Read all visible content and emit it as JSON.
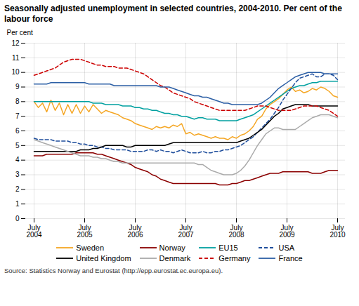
{
  "chart_data": {
    "type": "line",
    "title": "Seasonally adjusted unemployment in selected countries, 2004-2010. Per cent of the labour force",
    "ylabel": "Per cent",
    "caption": "Source: Statistics Norway and Eurostat (http://epp.eurostat.ec.europa.eu).",
    "categories": [
      "July\n2004",
      null,
      null,
      null,
      null,
      null,
      null,
      null,
      null,
      null,
      null,
      null,
      "July\n2005",
      null,
      null,
      null,
      null,
      null,
      null,
      null,
      null,
      null,
      null,
      null,
      "July\n2006",
      null,
      null,
      null,
      null,
      null,
      null,
      null,
      null,
      null,
      null,
      null,
      "July\n2007",
      null,
      null,
      null,
      null,
      null,
      null,
      null,
      null,
      null,
      null,
      null,
      "July\n2008",
      null,
      null,
      null,
      null,
      null,
      null,
      null,
      null,
      null,
      null,
      null,
      "July\n2009",
      null,
      null,
      null,
      null,
      null,
      null,
      null,
      null,
      null,
      null,
      null,
      "July\n2010"
    ],
    "ylim": [
      0,
      12
    ],
    "yticks": [
      0,
      1,
      2,
      3,
      4,
      5,
      6,
      7,
      8,
      9,
      10,
      11,
      12
    ],
    "grid": true,
    "legend": "bottom",
    "series": [
      {
        "name": "Sweden",
        "color": "#f5a623",
        "line_style": "solid",
        "values": [
          8.0,
          7.6,
          7.9,
          7.3,
          8.1,
          7.4,
          7.9,
          7.1,
          7.8,
          7.2,
          7.8,
          7.2,
          7.7,
          7.3,
          7.8,
          7.5,
          7.2,
          7.4,
          7.3,
          7.2,
          7.1,
          6.9,
          6.8,
          6.7,
          6.5,
          6.4,
          6.3,
          6.2,
          6.1,
          6.3,
          6.2,
          6.3,
          6.2,
          6.4,
          6.3,
          6.5,
          5.8,
          5.9,
          5.7,
          5.8,
          5.7,
          5.6,
          5.5,
          5.6,
          5.5,
          5.5,
          5.4,
          5.6,
          5.5,
          5.7,
          5.8,
          6.0,
          6.3,
          6.8,
          7.0,
          7.5,
          7.8,
          8.0,
          8.2,
          8.5,
          8.8,
          9.0,
          8.7,
          8.8,
          8.6,
          8.7,
          8.9,
          8.8,
          9.0,
          8.9,
          8.7,
          8.4,
          8.3
        ]
      },
      {
        "name": "Norway",
        "color": "#8b0000",
        "line_style": "solid",
        "values": [
          4.3,
          4.3,
          4.3,
          4.4,
          4.4,
          4.4,
          4.4,
          4.4,
          4.4,
          4.4,
          4.5,
          4.5,
          4.5,
          4.5,
          4.5,
          4.4,
          4.4,
          4.3,
          4.2,
          4.1,
          4.0,
          3.9,
          3.8,
          3.7,
          3.5,
          3.4,
          3.3,
          3.2,
          3.0,
          2.9,
          2.7,
          2.6,
          2.5,
          2.4,
          2.4,
          2.4,
          2.4,
          2.4,
          2.4,
          2.4,
          2.4,
          2.4,
          2.4,
          2.4,
          2.3,
          2.3,
          2.3,
          2.4,
          2.4,
          2.5,
          2.6,
          2.6,
          2.7,
          2.8,
          2.9,
          3.0,
          3.1,
          3.1,
          3.1,
          3.2,
          3.2,
          3.2,
          3.2,
          3.2,
          3.2,
          3.2,
          3.1,
          3.1,
          3.1,
          3.2,
          3.3,
          3.3,
          3.3
        ]
      },
      {
        "name": "EU15",
        "color": "#00a0a0",
        "line_style": "solid",
        "values": [
          8.0,
          8.0,
          8.0,
          8.0,
          8.0,
          8.0,
          8.0,
          8.0,
          8.0,
          8.0,
          8.0,
          8.0,
          8.0,
          8.0,
          7.9,
          7.9,
          7.9,
          7.8,
          7.8,
          7.8,
          7.8,
          7.7,
          7.7,
          7.7,
          7.6,
          7.6,
          7.5,
          7.5,
          7.4,
          7.4,
          7.3,
          7.2,
          7.2,
          7.1,
          7.1,
          7.0,
          7.0,
          6.9,
          6.8,
          6.9,
          6.9,
          6.8,
          6.8,
          6.8,
          6.7,
          6.7,
          6.7,
          6.7,
          6.7,
          6.8,
          6.9,
          7.0,
          7.1,
          7.3,
          7.5,
          7.7,
          7.9,
          8.1,
          8.3,
          8.5,
          8.7,
          8.9,
          9.0,
          9.1,
          9.1,
          9.2,
          9.3,
          9.3,
          9.4,
          9.4,
          9.4,
          9.4,
          9.4
        ]
      },
      {
        "name": "USA",
        "color": "#1f4e9c",
        "line_style": "dashed",
        "values": [
          5.5,
          5.4,
          5.4,
          5.4,
          5.4,
          5.3,
          5.3,
          5.3,
          5.3,
          5.2,
          5.2,
          5.1,
          5.1,
          5.0,
          5.0,
          4.9,
          4.9,
          4.8,
          4.8,
          4.7,
          4.7,
          4.7,
          4.7,
          4.6,
          4.6,
          4.6,
          4.6,
          4.7,
          4.7,
          4.6,
          4.7,
          4.6,
          4.6,
          4.5,
          4.6,
          4.7,
          4.6,
          4.5,
          4.5,
          4.5,
          4.6,
          4.5,
          4.5,
          4.6,
          4.6,
          4.7,
          4.7,
          4.8,
          4.9,
          5.0,
          5.2,
          5.4,
          5.6,
          5.9,
          6.2,
          6.5,
          6.8,
          7.2,
          7.6,
          8.1,
          8.5,
          8.9,
          9.3,
          9.6,
          9.7,
          9.8,
          9.9,
          9.7,
          9.7,
          9.9,
          9.9,
          9.8,
          9.5
        ]
      },
      {
        "name": "United Kingdom",
        "color": "#000000",
        "line_style": "solid",
        "values": [
          4.6,
          4.6,
          4.6,
          4.6,
          4.6,
          4.6,
          4.6,
          4.6,
          4.6,
          4.6,
          4.6,
          4.7,
          4.7,
          4.7,
          4.8,
          4.8,
          4.9,
          5.0,
          5.0,
          5.0,
          5.0,
          5.0,
          4.9,
          4.9,
          5.0,
          5.0,
          5.0,
          5.0,
          5.0,
          5.0,
          5.0,
          5.0,
          5.1,
          5.2,
          5.2,
          5.2,
          5.2,
          5.2,
          5.2,
          5.2,
          5.2,
          5.2,
          5.2,
          5.2,
          5.2,
          5.2,
          5.2,
          5.2,
          5.2,
          5.3,
          5.4,
          5.5,
          5.7,
          5.9,
          6.1,
          6.4,
          6.7,
          7.0,
          7.2,
          7.5,
          7.6,
          7.7,
          7.8,
          7.8,
          7.8,
          7.8,
          7.7,
          7.7,
          7.7,
          7.7,
          7.7,
          7.7,
          7.7
        ]
      },
      {
        "name": "Denmark",
        "color": "#aaaaaa",
        "line_style": "solid",
        "values": [
          5.4,
          5.3,
          5.2,
          5.1,
          5.0,
          4.9,
          4.8,
          4.7,
          4.6,
          4.5,
          4.4,
          4.3,
          4.3,
          4.3,
          4.2,
          4.2,
          4.1,
          4.1,
          4.0,
          3.9,
          3.9,
          3.8,
          3.8,
          3.8,
          3.8,
          3.8,
          3.8,
          3.8,
          3.8,
          3.8,
          3.8,
          3.8,
          3.8,
          3.8,
          3.8,
          3.8,
          3.8,
          3.8,
          3.8,
          3.7,
          3.7,
          3.5,
          3.3,
          3.2,
          3.1,
          3.0,
          3.0,
          3.0,
          3.1,
          3.3,
          3.6,
          4.0,
          4.5,
          5.0,
          5.4,
          5.8,
          6.0,
          6.2,
          6.2,
          6.1,
          6.1,
          6.1,
          6.1,
          6.3,
          6.5,
          6.7,
          6.9,
          7.0,
          7.1,
          7.1,
          7.1,
          7.0,
          6.9
        ]
      },
      {
        "name": "Germany",
        "color": "#cc0000",
        "line_style": "dashed",
        "values": [
          9.8,
          9.9,
          10.0,
          10.1,
          10.2,
          10.3,
          10.5,
          10.7,
          10.8,
          10.9,
          10.9,
          10.9,
          10.8,
          10.7,
          10.6,
          10.5,
          10.5,
          10.4,
          10.4,
          10.4,
          10.3,
          10.3,
          10.3,
          10.2,
          10.1,
          10.0,
          9.9,
          9.7,
          9.5,
          9.3,
          9.1,
          9.0,
          8.8,
          8.6,
          8.5,
          8.4,
          8.3,
          8.2,
          8.0,
          7.9,
          7.8,
          7.7,
          7.6,
          7.5,
          7.4,
          7.4,
          7.4,
          7.4,
          7.4,
          7.4,
          7.4,
          7.5,
          7.6,
          7.7,
          7.7,
          7.7,
          7.6,
          7.5,
          7.4,
          7.4,
          7.4,
          7.4,
          7.5,
          7.6,
          7.7,
          7.7,
          7.7,
          7.7,
          7.6,
          7.5,
          7.4,
          7.2,
          7.0
        ]
      },
      {
        "name": "France",
        "color": "#2c5fa5",
        "line_style": "solid",
        "values": [
          9.2,
          9.2,
          9.2,
          9.2,
          9.3,
          9.3,
          9.3,
          9.3,
          9.3,
          9.3,
          9.3,
          9.3,
          9.3,
          9.2,
          9.2,
          9.2,
          9.2,
          9.2,
          9.2,
          9.1,
          9.1,
          9.1,
          9.1,
          9.1,
          9.1,
          9.1,
          9.1,
          9.1,
          9.1,
          9.1,
          9.0,
          9.0,
          9.0,
          8.9,
          8.8,
          8.7,
          8.6,
          8.5,
          8.4,
          8.4,
          8.3,
          8.3,
          8.2,
          8.1,
          8.0,
          7.9,
          7.9,
          7.8,
          7.8,
          7.8,
          7.8,
          7.8,
          7.8,
          7.8,
          7.9,
          8.1,
          8.3,
          8.6,
          8.9,
          9.1,
          9.3,
          9.5,
          9.7,
          9.8,
          9.9,
          10.0,
          10.0,
          10.0,
          10.0,
          9.9,
          9.9,
          9.9,
          9.9
        ]
      }
    ]
  }
}
